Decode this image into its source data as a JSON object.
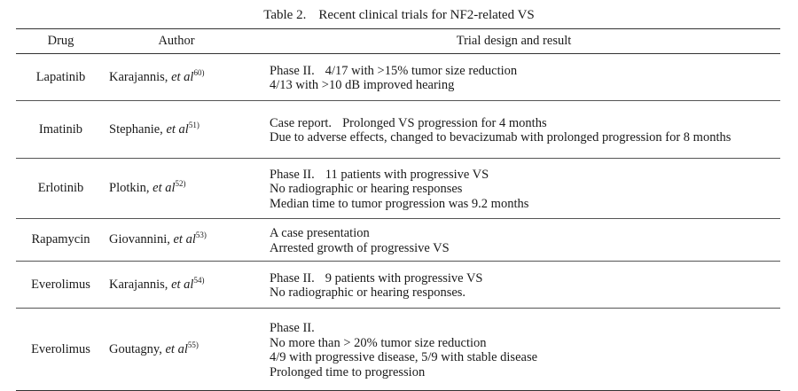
{
  "caption": {
    "label": "Table 2.",
    "title": "Recent clinical trials for NF2-related VS"
  },
  "headers": {
    "drug": "Drug",
    "author": "Author",
    "trial": "Trial design and result"
  },
  "rows": [
    {
      "drug": "Lapatinib",
      "author_name": "Karajannis,",
      "author_etal": "et al",
      "ref": "60)",
      "lead": "Phase II.",
      "lead_rest": "4/17 with >15% tumor size reduction",
      "lines": [
        "4/13 with >10 dB improved hearing"
      ]
    },
    {
      "drug": "Imatinib",
      "author_name": "Stephanie,",
      "author_etal": "et al",
      "ref": "51)",
      "lead": "Case report.",
      "lead_rest": "Prolonged VS progression for 4 months",
      "lines": [
        "Due to adverse effects, changed to bevacizumab with prolonged progression for 8 months"
      ]
    },
    {
      "drug": "Erlotinib",
      "author_name": "Plotkin,",
      "author_etal": "et al",
      "ref": "52)",
      "lead": "Phase II.",
      "lead_rest": "11 patients with progressive VS",
      "lines": [
        "No radiographic or hearing responses",
        "Median time to tumor progression was 9.2 months"
      ]
    },
    {
      "drug": "Rapamycin",
      "author_name": "Giovannini,",
      "author_etal": "et al",
      "ref": "53)",
      "lead": "A case presentation",
      "lead_rest": "",
      "lines": [
        "Arrested growth of progressive VS"
      ]
    },
    {
      "drug": "Everolimus",
      "author_name": "Karajannis,",
      "author_etal": "et al",
      "ref": "54)",
      "lead": "Phase II.",
      "lead_rest": "9 patients with progressive VS",
      "lines": [
        "No radiographic or hearing responses."
      ]
    },
    {
      "drug": "Everolimus",
      "author_name": "Goutagny,",
      "author_etal": "et al",
      "ref": "55)",
      "lead": "Phase II.",
      "lead_rest": "",
      "lines": [
        "No more than > 20% tumor size reduction",
        "4/9 with progressive disease, 5/9 with stable disease",
        "Prolonged time to progression"
      ]
    }
  ]
}
